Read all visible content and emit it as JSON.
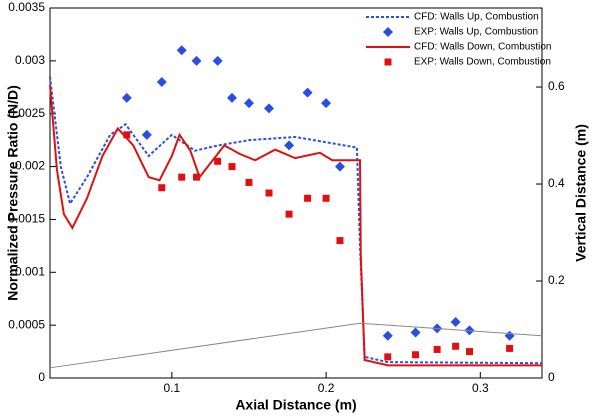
{
  "chart_data": {
    "type": "line",
    "xlabel": "Axial Distance (m)",
    "ylabel": "Normalized Pressure Ratio (N/D)",
    "y2label": "Vertical Distance (m)",
    "xlim": [
      0.021,
      0.34
    ],
    "xticks": [
      0.1,
      0.2,
      0.3
    ],
    "ylim": [
      0,
      0.0035
    ],
    "yticks": [
      0,
      0.0005,
      0.001,
      0.0015,
      0.002,
      0.0025,
      0.003,
      0.0035
    ],
    "y2lim": [
      0,
      0.763
    ],
    "y2ticks": [
      0,
      0.2,
      0.4,
      0.6
    ],
    "legend": "upper right",
    "series": [
      {
        "name": "CFD: Walls Up, Combustion",
        "color": "#2a4fe0",
        "mode": "dashed",
        "x": [
          0.021,
          0.028,
          0.034,
          0.045,
          0.06,
          0.07,
          0.085,
          0.1,
          0.115,
          0.13,
          0.15,
          0.18,
          0.2,
          0.22,
          0.222,
          0.225,
          0.24,
          0.34
        ],
        "values": [
          0.00285,
          0.002,
          0.00165,
          0.0019,
          0.0023,
          0.0024,
          0.0021,
          0.0023,
          0.00215,
          0.0022,
          0.00225,
          0.00228,
          0.00223,
          0.00218,
          0.00125,
          0.0002,
          0.00015,
          0.00014
        ]
      },
      {
        "name": "EXP: Walls Up, Combustion",
        "color": "#2a4fe0",
        "mode": "diamond",
        "x": [
          0.0708,
          0.0838,
          0.0935,
          0.1064,
          0.116,
          0.1297,
          0.139,
          0.15,
          0.163,
          0.176,
          0.188,
          0.2,
          0.209,
          0.24,
          0.258,
          0.272,
          0.284,
          0.293,
          0.319
        ],
        "values": [
          0.00265,
          0.0023,
          0.0028,
          0.0031,
          0.003,
          0.003,
          0.00265,
          0.0026,
          0.00255,
          0.0022,
          0.0027,
          0.0026,
          0.002,
          0.0004,
          0.00043,
          0.00047,
          0.00053,
          0.00045,
          0.0004
        ]
      },
      {
        "name": "CFD: Walls Down, Combustion",
        "color": "#e01010",
        "mode": "solid",
        "x": [
          0.021,
          0.0255,
          0.03,
          0.0355,
          0.045,
          0.055,
          0.065,
          0.075,
          0.085,
          0.092,
          0.1,
          0.105,
          0.112,
          0.118,
          0.126,
          0.134,
          0.144,
          0.154,
          0.167,
          0.18,
          0.196,
          0.204,
          0.222,
          0.2225,
          0.225,
          0.24,
          0.34
        ],
        "values": [
          0.00277,
          0.00197,
          0.00155,
          0.00142,
          0.0017,
          0.0021,
          0.00236,
          0.0022,
          0.0019,
          0.00187,
          0.0021,
          0.0023,
          0.00215,
          0.0019,
          0.00205,
          0.0022,
          0.00212,
          0.00206,
          0.00216,
          0.00208,
          0.00213,
          0.00206,
          0.00206,
          0.00116,
          0.00017,
          0.00012,
          0.00012
        ]
      },
      {
        "name": "EXP: Walls Down, Combustion",
        "color": "#e01010",
        "mode": "square",
        "x": [
          0.0708,
          0.0935,
          0.1064,
          0.116,
          0.1297,
          0.139,
          0.15,
          0.163,
          0.176,
          0.188,
          0.2,
          0.209,
          0.24,
          0.258,
          0.272,
          0.284,
          0.293,
          0.319
        ],
        "values": [
          0.0023,
          0.0018,
          0.0019,
          0.0019,
          0.00205,
          0.002,
          0.00185,
          0.00175,
          0.00155,
          0.0017,
          0.0017,
          0.0013,
          0.0002,
          0.00022,
          0.00027,
          0.0003,
          0.00025,
          0.00028
        ]
      },
      {
        "color": "#888888",
        "mode": "thin",
        "axis": "y2",
        "x": [
          0.021,
          0.222,
          0.34
        ],
        "values": [
          0.021,
          0.113,
          0.087
        ]
      }
    ]
  }
}
